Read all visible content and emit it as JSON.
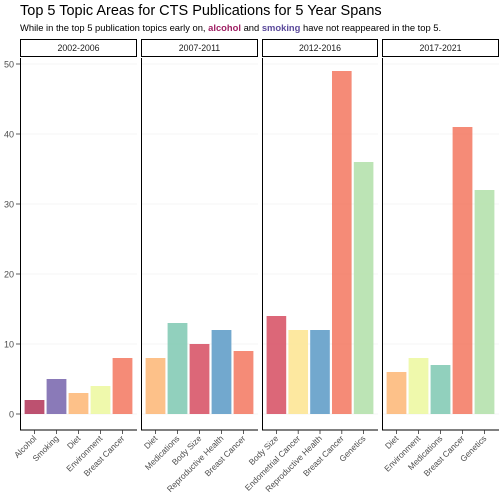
{
  "title": "Top 5 Topic Areas for CTS Publications for 5 Year Spans",
  "subtitle": {
    "before": "While in the top 5 publication topics early on, ",
    "highlight1": "alcohol",
    "middle": " and ",
    "highlight2": "smoking",
    "after": " have not reappeared in the top 5."
  },
  "colors": {
    "Alcohol": "#B63E61",
    "Smoking": "#7D6BB0",
    "Diet": "#FDBA7C",
    "Environment": "#EDF8A3",
    "Breast Cancer": "#F47E68",
    "Medications": "#85CBB6",
    "Body Size": "#D85669",
    "Reproductive Health": "#639FC9",
    "Endometrial Cancer": "#FDE596",
    "Genetics": "#B5E1AD",
    "alcohol_highlight": "#9E1F63",
    "smoking_highlight": "#5B4A9B"
  },
  "chart_data": {
    "type": "bar",
    "title": "Top 5 Topic Areas for CTS Publications for 5 Year Spans",
    "xlabel": "",
    "ylabel": "",
    "ylim": [
      0,
      52
    ],
    "yticks": [
      0,
      10,
      20,
      30,
      40,
      50
    ],
    "grid": true,
    "facets": [
      {
        "label": "2002-2006",
        "categories": [
          "Alcohol",
          "Smoking",
          "Diet",
          "Environment",
          "Breast Cancer"
        ],
        "values": [
          2,
          5,
          3,
          4,
          8
        ]
      },
      {
        "label": "2007-2011",
        "categories": [
          "Diet",
          "Medications",
          "Body Size",
          "Reproductive Health",
          "Breast Cancer"
        ],
        "values": [
          8,
          13,
          10,
          12,
          9
        ]
      },
      {
        "label": "2012-2016",
        "categories": [
          "Body Size",
          "Endometrial Cancer",
          "Reproductive Health",
          "Breast Cancer",
          "Genetics"
        ],
        "values": [
          14,
          12,
          12,
          49,
          36
        ]
      },
      {
        "label": "2017-2021",
        "categories": [
          "Diet",
          "Environment",
          "Medications",
          "Breast Cancer",
          "Genetics"
        ],
        "values": [
          6,
          8,
          7,
          41,
          32
        ]
      }
    ]
  }
}
